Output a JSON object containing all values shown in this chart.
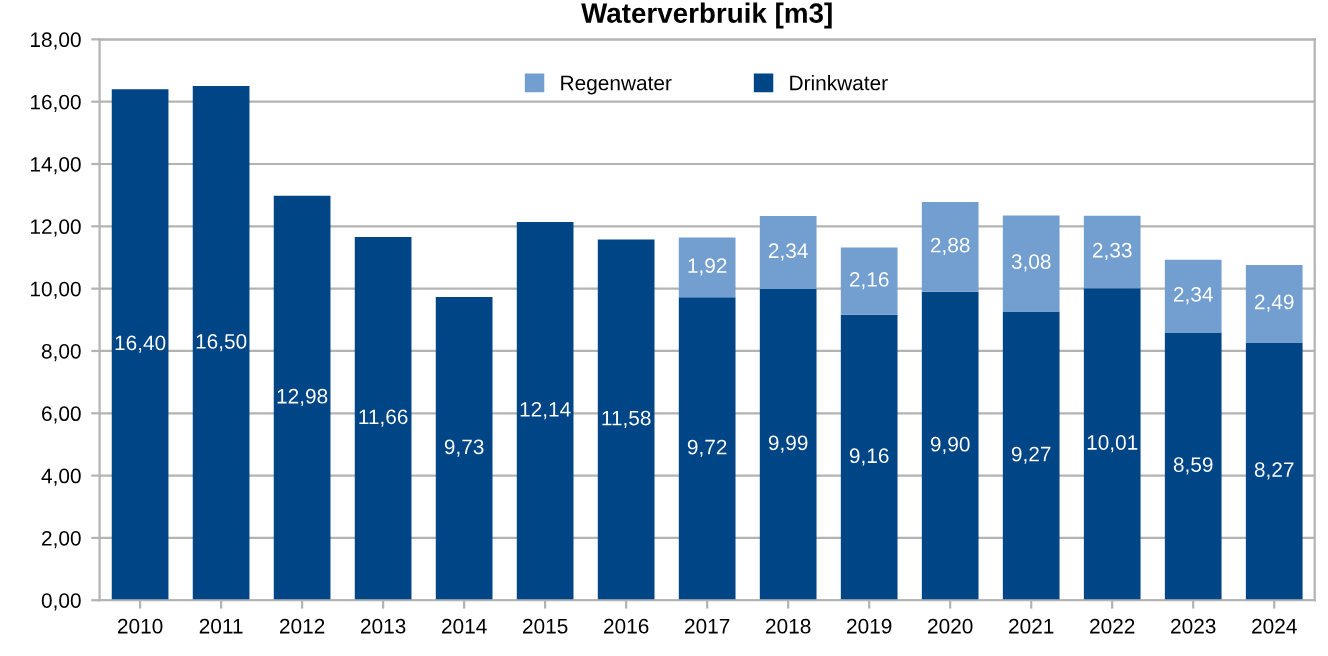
{
  "chart_data": {
    "type": "bar",
    "title": "Waterverbruik [m3]",
    "stacked": true,
    "grid": "y",
    "legend": "top",
    "categories": [
      "2010",
      "2011",
      "2012",
      "2013",
      "2014",
      "2015",
      "2016",
      "2017",
      "2018",
      "2019",
      "2020",
      "2021",
      "2022",
      "2023",
      "2024"
    ],
    "series": [
      {
        "name": "Drinkwater",
        "color": "#004586",
        "values": [
          16.4,
          16.5,
          12.98,
          11.66,
          9.73,
          12.14,
          11.58,
          9.72,
          9.99,
          9.16,
          9.9,
          9.27,
          10.01,
          8.59,
          8.27
        ],
        "value_labels": [
          "16,40",
          "16,50",
          "12,98",
          "11,66",
          "9,73",
          "12,14",
          "11,58",
          "9,72",
          "9,99",
          "9,16",
          "9,90",
          "9,27",
          "10,01",
          "8,59",
          "8,27"
        ]
      },
      {
        "name": "Regenwater",
        "color": "#729fcf",
        "values": [
          null,
          null,
          null,
          null,
          null,
          null,
          null,
          1.92,
          2.34,
          2.16,
          2.88,
          3.08,
          2.33,
          2.34,
          2.49
        ],
        "value_labels": [
          null,
          null,
          null,
          null,
          null,
          null,
          null,
          "1,92",
          "2,34",
          "2,16",
          "2,88",
          "3,08",
          "2,33",
          "2,34",
          "2,49"
        ]
      }
    ],
    "ylim": [
      0,
      18
    ],
    "yticks": [
      {
        "value": 0,
        "label": "0,00"
      },
      {
        "value": 2,
        "label": "2,00"
      },
      {
        "value": 4,
        "label": "4,00"
      },
      {
        "value": 6,
        "label": "6,00"
      },
      {
        "value": 8,
        "label": "8,00"
      },
      {
        "value": 10,
        "label": "10,00"
      },
      {
        "value": 12,
        "label": "12,00"
      },
      {
        "value": 14,
        "label": "14,00"
      },
      {
        "value": 16,
        "label": "16,00"
      },
      {
        "value": 18,
        "label": "18,00"
      }
    ]
  }
}
